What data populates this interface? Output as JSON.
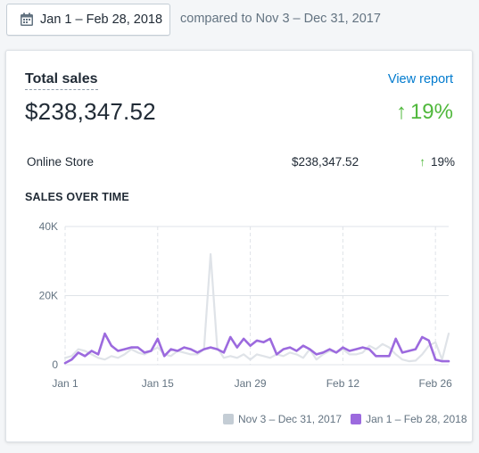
{
  "header": {
    "date_range_label": "Jan 1 – Feb 28, 2018",
    "compared_text": "compared to Nov 3 – Dec 31, 2017"
  },
  "card": {
    "title": "Total sales",
    "view_report_label": "View report",
    "total_value": "$238,347.52",
    "change_arrow": "↑",
    "change_percent": "19%",
    "breakdown": {
      "name": "Online Store",
      "value": "$238,347.52",
      "arrow": "↑",
      "percent": "19%"
    },
    "section_title": "SALES OVER TIME"
  },
  "colors": {
    "accent_green": "#50b83c",
    "link_blue": "#007ace",
    "current_series": "#9c6ade",
    "previous_series": "#dfe3e8"
  },
  "chart_data": {
    "type": "line",
    "ylim": [
      0,
      40000
    ],
    "yticks": [
      0,
      20000,
      40000
    ],
    "ytick_labels": [
      "0",
      "20K",
      "40K"
    ],
    "x_tick_labels": [
      "Jan 1",
      "Jan 15",
      "Jan 29",
      "Feb 12",
      "Feb 26"
    ],
    "x_tick_indices": [
      0,
      14,
      28,
      42,
      56
    ],
    "grid": true,
    "legend_position": "bottom-right",
    "series": [
      {
        "name": "Nov 3 – Dec 31, 2017",
        "values": [
          2000,
          2500,
          4500,
          4000,
          3000,
          2000,
          1500,
          2500,
          2000,
          3000,
          4500,
          3500,
          3000,
          4000,
          5000,
          3000,
          2500,
          4000,
          3500,
          3000,
          3000,
          4500,
          32000,
          5000,
          2000,
          2500,
          2000,
          3000,
          1500,
          3000,
          2500,
          2000,
          3000,
          2500,
          3500,
          3000,
          2000,
          4500,
          1500,
          3000,
          4000,
          3500,
          4500,
          3000,
          3000,
          3500,
          5500,
          4500,
          6000,
          5000,
          3000,
          1500,
          1000,
          1200,
          3000,
          5500,
          6500,
          1500,
          9000
        ]
      },
      {
        "name": "Jan 1 – Feb 28, 2018",
        "values": [
          500,
          1500,
          3500,
          2500,
          4000,
          3000,
          9000,
          5500,
          4000,
          4500,
          5000,
          5000,
          3500,
          4000,
          7500,
          2500,
          4500,
          4000,
          5000,
          4500,
          3500,
          4500,
          5000,
          4500,
          3500,
          8000,
          5000,
          7500,
          5500,
          7000,
          6500,
          7500,
          3000,
          4500,
          5000,
          4000,
          5500,
          4500,
          3000,
          3500,
          4500,
          3500,
          5000,
          4000,
          4500,
          5000,
          4500,
          2500,
          2500,
          2500,
          7500,
          3500,
          4000,
          4500,
          8000,
          7000,
          1500,
          1000,
          1000
        ]
      }
    ]
  }
}
